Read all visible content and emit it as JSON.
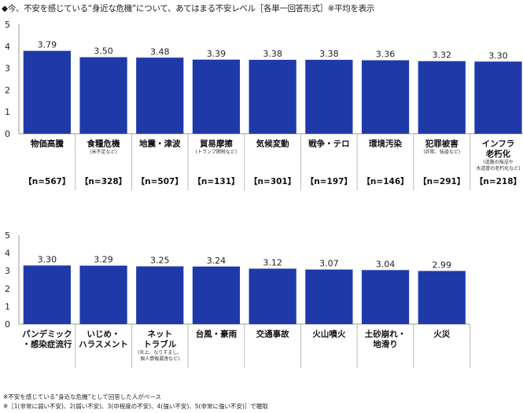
{
  "title": "◆今、不安を感じている“身近な危機”について、あてはまる不安レベル［各単一回答形式］※平均を表示",
  "chart_data": [
    {
      "type": "bar",
      "ylim": [
        0,
        5
      ],
      "yticks": [
        "0",
        "1",
        "2",
        "3",
        "4",
        "5"
      ],
      "color": "#1f3aa8",
      "categories": [
        "物価高騰",
        "食糧危機",
        "地震・津波",
        "貿易摩擦",
        "気候変動",
        "戦争・テロ",
        "環境汚染",
        "犯罪被害",
        "インフラ\n老朽化"
      ],
      "subnotes": [
        "",
        "(米不足など)",
        "",
        "(トランプ関税など)",
        "",
        "",
        "",
        "(詐欺、強盗など)",
        "(道路の陥没や\n水道管の老朽化など)"
      ],
      "values": [
        3.79,
        3.5,
        3.48,
        3.39,
        3.38,
        3.38,
        3.36,
        3.32,
        3.3
      ],
      "value_labels": [
        "3.79",
        "3.50",
        "3.48",
        "3.39",
        "3.38",
        "3.38",
        "3.36",
        "3.32",
        "3.30"
      ],
      "n_labels": [
        "【n=567】",
        "【n=328】",
        "【n=507】",
        "【n=131】",
        "【n=301】",
        "【n=197】",
        "【n=146】",
        "【n=291】",
        "【n=218】"
      ]
    },
    {
      "type": "bar",
      "ylim": [
        0,
        5
      ],
      "yticks": [
        "0",
        "1",
        "2",
        "3",
        "4",
        "5"
      ],
      "color": "#1f3aa8",
      "categories": [
        "パンデミック\n・感染症流行",
        "いじめ・\nハラスメント",
        "ネット\nトラブル",
        "台風・豪雨",
        "交通事故",
        "火山噴火",
        "土砂崩れ・\n地滑り",
        "火災"
      ],
      "subnotes": [
        "",
        "",
        "(炎上、なりすまし、\n個人情報漏洩など)",
        "",
        "",
        "",
        "",
        ""
      ],
      "values": [
        3.3,
        3.29,
        3.25,
        3.24,
        3.12,
        3.07,
        3.04,
        2.99
      ],
      "value_labels": [
        "3.30",
        "3.29",
        "3.25",
        "3.24",
        "3.12",
        "3.07",
        "3.04",
        "2.99"
      ],
      "n_labels": [
        "【n=173】",
        "【n=156】",
        "【n=259】",
        "【n=319】",
        "【n=290】",
        "【n=67】",
        "【n=77】",
        "【n=158】"
      ]
    }
  ],
  "footnotes": [
    "※不安を感じている“身近な危機”として回答した人がベース",
    "※［1(非常に弱い不安)、2(弱い不安)、3(中程度の不安)、4(強い不安)、5(非常に強い不安)］で聴取"
  ]
}
